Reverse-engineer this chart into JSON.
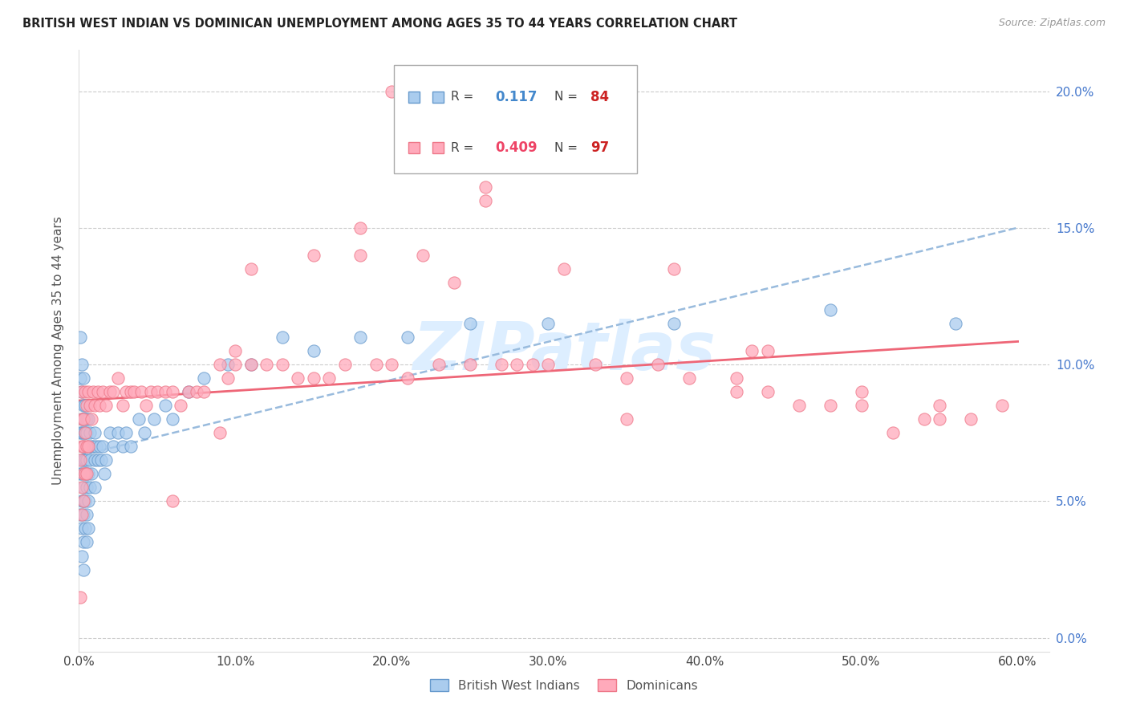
{
  "title": "BRITISH WEST INDIAN VS DOMINICAN UNEMPLOYMENT AMONG AGES 35 TO 44 YEARS CORRELATION CHART",
  "source": "Source: ZipAtlas.com",
  "ylabel": "Unemployment Among Ages 35 to 44 years",
  "xlabel_ticks": [
    "0.0%",
    "10.0%",
    "20.0%",
    "30.0%",
    "40.0%",
    "50.0%",
    "60.0%"
  ],
  "ylabel_ticks_right": [
    "0.0%",
    "5.0%",
    "10.0%",
    "15.0%",
    "20.0%"
  ],
  "xlim": [
    0.0,
    0.62
  ],
  "ylim": [
    -0.005,
    0.215
  ],
  "series1_label": "British West Indians",
  "series2_label": "Dominicans",
  "series1_color": "#aaccee",
  "series2_color": "#ffaabb",
  "series1_edge": "#6699cc",
  "series2_edge": "#ee7788",
  "trend1_color": "#99bbdd",
  "trend2_color": "#ee6677",
  "R1": 0.117,
  "N1": 84,
  "R2": 0.409,
  "N2": 97,
  "legend_box_color": "#ffffff",
  "legend_border_color": "#aaaaaa",
  "legend_R_color": "#333333",
  "legend_val1_color": "#4488cc",
  "legend_val2_color": "#ee4466",
  "legend_N_color": "#333333",
  "legend_Nval1_color": "#cc2222",
  "legend_Nval2_color": "#cc2222",
  "watermark": "ZIPatlas",
  "watermark_color": "#ddeeff",
  "series1_x": [
    0.001,
    0.001,
    0.001,
    0.001,
    0.001,
    0.002,
    0.002,
    0.002,
    0.002,
    0.002,
    0.002,
    0.002,
    0.002,
    0.002,
    0.003,
    0.003,
    0.003,
    0.003,
    0.003,
    0.003,
    0.003,
    0.003,
    0.003,
    0.003,
    0.003,
    0.004,
    0.004,
    0.004,
    0.004,
    0.004,
    0.004,
    0.004,
    0.005,
    0.005,
    0.005,
    0.005,
    0.005,
    0.005,
    0.005,
    0.006,
    0.006,
    0.006,
    0.006,
    0.006,
    0.007,
    0.007,
    0.007,
    0.008,
    0.008,
    0.009,
    0.01,
    0.01,
    0.01,
    0.011,
    0.012,
    0.013,
    0.014,
    0.015,
    0.016,
    0.017,
    0.02,
    0.022,
    0.025,
    0.028,
    0.03,
    0.033,
    0.038,
    0.042,
    0.048,
    0.055,
    0.06,
    0.07,
    0.08,
    0.095,
    0.11,
    0.13,
    0.15,
    0.18,
    0.21,
    0.25,
    0.3,
    0.38,
    0.48,
    0.56
  ],
  "series1_y": [
    0.11,
    0.095,
    0.075,
    0.06,
    0.045,
    0.1,
    0.09,
    0.08,
    0.075,
    0.065,
    0.06,
    0.05,
    0.04,
    0.03,
    0.095,
    0.085,
    0.08,
    0.075,
    0.07,
    0.065,
    0.055,
    0.05,
    0.045,
    0.035,
    0.025,
    0.085,
    0.08,
    0.075,
    0.065,
    0.06,
    0.05,
    0.04,
    0.08,
    0.075,
    0.065,
    0.06,
    0.055,
    0.045,
    0.035,
    0.08,
    0.07,
    0.06,
    0.05,
    0.04,
    0.075,
    0.065,
    0.055,
    0.07,
    0.06,
    0.07,
    0.075,
    0.065,
    0.055,
    0.07,
    0.065,
    0.07,
    0.065,
    0.07,
    0.06,
    0.065,
    0.075,
    0.07,
    0.075,
    0.07,
    0.075,
    0.07,
    0.08,
    0.075,
    0.08,
    0.085,
    0.08,
    0.09,
    0.095,
    0.1,
    0.1,
    0.11,
    0.105,
    0.11,
    0.11,
    0.115,
    0.115,
    0.115,
    0.12,
    0.115
  ],
  "series2_x": [
    0.001,
    0.001,
    0.002,
    0.002,
    0.002,
    0.002,
    0.002,
    0.003,
    0.003,
    0.003,
    0.003,
    0.004,
    0.004,
    0.004,
    0.005,
    0.005,
    0.005,
    0.006,
    0.006,
    0.007,
    0.008,
    0.009,
    0.01,
    0.012,
    0.013,
    0.015,
    0.017,
    0.02,
    0.022,
    0.025,
    0.028,
    0.03,
    0.033,
    0.035,
    0.04,
    0.043,
    0.046,
    0.05,
    0.055,
    0.06,
    0.065,
    0.07,
    0.075,
    0.08,
    0.09,
    0.095,
    0.1,
    0.11,
    0.12,
    0.13,
    0.14,
    0.15,
    0.16,
    0.17,
    0.18,
    0.19,
    0.2,
    0.21,
    0.22,
    0.23,
    0.24,
    0.25,
    0.26,
    0.27,
    0.29,
    0.31,
    0.33,
    0.35,
    0.37,
    0.39,
    0.42,
    0.44,
    0.46,
    0.48,
    0.5,
    0.52,
    0.54,
    0.55,
    0.57,
    0.59,
    0.26,
    0.35,
    0.42,
    0.18,
    0.09,
    0.06,
    0.15,
    0.1,
    0.28,
    0.2,
    0.38,
    0.43,
    0.5,
    0.11,
    0.3,
    0.44,
    0.55
  ],
  "series2_y": [
    0.065,
    0.015,
    0.09,
    0.08,
    0.07,
    0.055,
    0.045,
    0.08,
    0.07,
    0.06,
    0.05,
    0.09,
    0.075,
    0.06,
    0.085,
    0.07,
    0.06,
    0.09,
    0.07,
    0.085,
    0.08,
    0.09,
    0.085,
    0.09,
    0.085,
    0.09,
    0.085,
    0.09,
    0.09,
    0.095,
    0.085,
    0.09,
    0.09,
    0.09,
    0.09,
    0.085,
    0.09,
    0.09,
    0.09,
    0.09,
    0.085,
    0.09,
    0.09,
    0.09,
    0.1,
    0.095,
    0.1,
    0.1,
    0.1,
    0.1,
    0.095,
    0.14,
    0.095,
    0.1,
    0.15,
    0.1,
    0.1,
    0.095,
    0.14,
    0.1,
    0.13,
    0.1,
    0.16,
    0.1,
    0.1,
    0.135,
    0.1,
    0.095,
    0.1,
    0.095,
    0.095,
    0.09,
    0.085,
    0.085,
    0.09,
    0.075,
    0.08,
    0.085,
    0.08,
    0.085,
    0.165,
    0.08,
    0.09,
    0.14,
    0.075,
    0.05,
    0.095,
    0.105,
    0.1,
    0.2,
    0.135,
    0.105,
    0.085,
    0.135,
    0.1,
    0.105,
    0.08
  ]
}
